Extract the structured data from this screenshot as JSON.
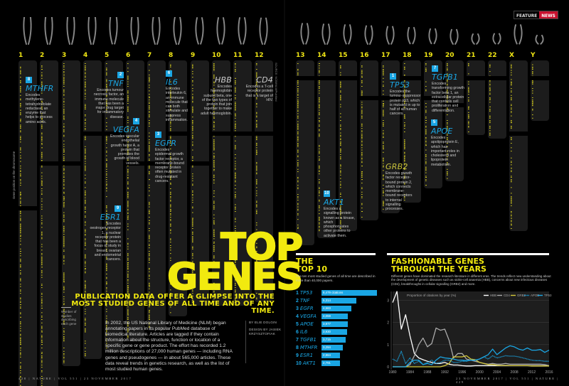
{
  "header": {
    "section_tag": "FEATURE",
    "section_tag_highlight": "NEWS",
    "colors": {
      "accent_yellow": "#f2ea0f",
      "accent_blue": "#1aa6e4",
      "news_red": "#c8102e"
    }
  },
  "chromosomes": [
    "1",
    "2",
    "3",
    "4",
    "5",
    "6",
    "7",
    "8",
    "9",
    "10",
    "11",
    "12",
    "13",
    "14",
    "15",
    "16",
    "17",
    "18",
    "19",
    "20",
    "21",
    "22",
    "X",
    "Y"
  ],
  "axis_notes": {
    "gene_position": "Gene position on the chromosome",
    "number_of_studies": "Number of studies describing each gene",
    "source": "SOURCE: NCBI/NLM/PubMed"
  },
  "genes": [
    {
      "rank": "8",
      "name": "MTHFR",
      "desc": "Encodes methylene-tetrahydrofolate reductase, an enzyme that helps to process amino acids."
    },
    {
      "rank": "2",
      "name": "TNF",
      "desc": "Encodes tumour necrosis factor, an immune molecule that has been a major drug target for inflammatory disease."
    },
    {
      "rank": "4",
      "name": "VEGFA",
      "desc": "Encodes vascular endothelial growth factor A, a protein that promotes the growth of blood vessels."
    },
    {
      "rank": "6",
      "name": "IL6",
      "desc": "Encodes interleukin 6, an immune molecule that can both stimulate and suppress inflammation."
    },
    {
      "rank": "3",
      "name": "EGFR",
      "desc": "Encodes epidermal growth factor receptor, a membrane-bound receptor protein often mutated in drug-resistant cancers."
    },
    {
      "rank": "",
      "name": "HBB",
      "desc": "Encodes haemoglobin subunit beta, one of the two types of protein that join together to make adult haemoglobin."
    },
    {
      "rank": "",
      "name": "CD4",
      "desc": "Encodes a T-cell receptor protein that is a target of HIV."
    },
    {
      "rank": "9",
      "name": "ESR1",
      "desc": "Encodes oestrogen receptor 1, a nuclear receptor protein that has been a focus of study in breast, ovarian and endometrial cancers."
    },
    {
      "rank": "1",
      "name": "TP53",
      "desc": "Encodes the tumour-suppressor protein p53, which is mutated in up to half of all human cancers."
    },
    {
      "rank": "7",
      "name": "TGFB1",
      "desc": "Encodes transforming growth factor beta 1, an extracellular protein that controls cell proliferation and differentiation."
    },
    {
      "rank": "5",
      "name": "APOE",
      "desc": "Encodes apolipoprotein E, which has important roles in cholesterol and lipoprotein metabolism."
    },
    {
      "rank": "",
      "name": "GRB2",
      "desc": "Encodes growth factor receptor-bound protein 2, which connects membrane-bound receptors to internal signalling processes."
    },
    {
      "rank": "10",
      "name": "AKT1",
      "desc": "Encodes a signalling protein known as a kinase, which phosphorylates other proteins to activate them."
    }
  ],
  "headline": {
    "line1": "TOP",
    "line2": "GENES",
    "subtitle": "PUBLICATION DATA OFFER A GLIMPSE INTO THE MOST STUDIED GENES OF ALL TIME AND OF ANY TIME."
  },
  "intro": "In 2002, the US National Library of Medicine (NLM) began annotating papers in its popular PubMed database of biomedical literature. Articles are tagged if they contain information about the structure, function or location of a specific gene or gene product. The effort has recorded 1.2 million descriptions of 27,000 human genes — including RNA genes and pseudogenes — in about 565,000 articles. These data reveal trends in genetics research, as well as the list of most studied human genes.",
  "byline": {
    "author": "BY ELIE DOLGIN",
    "design": "DESIGN BY JASIEK KRZYSZTOFIAK"
  },
  "folio": {
    "left": "428 | NATURE | VOL 551 | 23 NOVEMBER 2017",
    "right": "23 NOVEMBER 2017 | VOL 551 | NATURE | 429"
  },
  "top10": {
    "title_line1": "THE",
    "title_line2": "TOP 10",
    "desc": "The ten most studied genes of all time are described in more than 40,000 papers.",
    "unit_suffix": " citations",
    "items": [
      {
        "rank": "1",
        "gene": "TP53",
        "value": 8479,
        "label": "8,479"
      },
      {
        "rank": "2",
        "gene": "TNF",
        "value": 5314,
        "label": "5,314"
      },
      {
        "rank": "3",
        "gene": "EGFR",
        "value": 4583,
        "label": "4,583"
      },
      {
        "rank": "4",
        "gene": "VEGFA",
        "value": 4059,
        "label": "4,059"
      },
      {
        "rank": "5",
        "gene": "APOE",
        "value": 3977,
        "label": "3,977"
      },
      {
        "rank": "6",
        "gene": "IL6",
        "value": 3930,
        "label": "3,930"
      },
      {
        "rank": "7",
        "gene": "TGFB1",
        "value": 3715,
        "label": "3,715"
      },
      {
        "rank": "8",
        "gene": "MTHFR",
        "value": 3294,
        "label": "3,294"
      },
      {
        "rank": "9",
        "gene": "ESR1",
        "value": 2864,
        "label": "2,864"
      },
      {
        "rank": "10",
        "gene": "AKT1",
        "value": 2791,
        "label": "2,791"
      }
    ]
  },
  "fashion": {
    "title_line1": "FASHIONABLE GENES",
    "title_line2": "THROUGH THE YEARS",
    "desc": "Different genes have dominated the research literature in different eras. The trends reflect new understanding about the development of genetic diseases such as sickle-cell anaemia (HBB), concerns about new infectious diseases (CD4), breakthroughs in cellular signalling (GRB2) and more."
  },
  "chart_data": {
    "type": "line",
    "title": "Proportion of citations by year (%)",
    "xlabel": "",
    "ylabel": "Proportion of citations by year (%)",
    "x": [
      1980,
      1981,
      1982,
      1983,
      1984,
      1985,
      1986,
      1987,
      1988,
      1989,
      1990,
      1991,
      1992,
      1993,
      1994,
      1995,
      1996,
      1997,
      1998,
      1999,
      2000,
      2001,
      2002,
      2003,
      2004,
      2005,
      2006,
      2007,
      2008,
      2009,
      2010,
      2011,
      2012,
      2013,
      2014,
      2015,
      2016
    ],
    "xticks": [
      "1980",
      "1984",
      "1988",
      "1992",
      "1996",
      "2000",
      "2004",
      "2008",
      "2012",
      "2016"
    ],
    "yticks": [
      "0",
      "1",
      "2",
      "3"
    ],
    "ylim": [
      0,
      3.4
    ],
    "xlim": [
      1980,
      2016
    ],
    "grid": true,
    "legend_position": "top",
    "series": [
      {
        "name": "HBB",
        "color": "#ffffff",
        "dash": "solid",
        "values": [
          2.9,
          3.4,
          1.7,
          2.35,
          1.4,
          0.6,
          0.4,
          0.32,
          0.25,
          0.2,
          0.15,
          0.15,
          0.2,
          0.12,
          0.08,
          0.08,
          0.05,
          0.04,
          0.04,
          0.05,
          0.05,
          0.05,
          0.05,
          0.05,
          0.05,
          0.05,
          0.05,
          0.05,
          0.05,
          0.05,
          0.05,
          0.05,
          0.05,
          0.05,
          0.05,
          0.05,
          0.04
        ]
      },
      {
        "name": "CD4",
        "color": "#aaaaaa",
        "dash": "solid",
        "values": [
          0,
          0,
          0,
          0,
          0.1,
          0.5,
          1.0,
          1.3,
          0.9,
          1.05,
          1.75,
          1.65,
          1.7,
          1.2,
          0.4,
          0.6,
          0.6,
          0.35,
          0.3,
          0.25,
          0.2,
          0.15,
          0.12,
          0.15,
          0.12,
          0.12,
          0.15,
          0.12,
          0.12,
          0.12,
          0.12,
          0.12,
          0.12,
          0.12,
          0.12,
          0.1,
          0.05
        ]
      },
      {
        "name": "GRB2",
        "color": "#d4c83a",
        "dash": "solid",
        "values": [
          0,
          0,
          0,
          0,
          0,
          0,
          0,
          0,
          0,
          0,
          0,
          0,
          0.05,
          0.15,
          0.45,
          0.45,
          0.45,
          0.5,
          0.35,
          0.32,
          0.2,
          0.15,
          0.1,
          0.1,
          0.07,
          0.06,
          0.06,
          0.05,
          0.05,
          0.05,
          0.05,
          0.05,
          0.04,
          0.04,
          0.04,
          0.04,
          0.04
        ]
      },
      {
        "name": "APOE",
        "color": "#1aa6e4",
        "dash": "dotted",
        "values": [
          0.35,
          0.25,
          0.7,
          0.15,
          0.4,
          0.15,
          0.25,
          0.1,
          0.2,
          0.3,
          0.15,
          0.2,
          0.3,
          0.3,
          0.2,
          0.2,
          0.25,
          0.25,
          0.3,
          0.3,
          0.35,
          0.45,
          0.35,
          0.5,
          0.4,
          0.45,
          0.5,
          0.48,
          0.48,
          0.45,
          0.4,
          0.35,
          0.3,
          0.28,
          0.28,
          0.25,
          0.25
        ]
      },
      {
        "name": "TP53",
        "color": "#1aa6e4",
        "dash": "solid",
        "values": [
          0,
          0,
          0,
          0,
          0.2,
          0.3,
          0.3,
          0.1,
          0.15,
          0.1,
          0.3,
          0.45,
          0.4,
          0.38,
          0.35,
          0.3,
          0.3,
          0.28,
          0.3,
          0.3,
          0.35,
          0.45,
          0.55,
          0.8,
          0.55,
          0.7,
          0.85,
          0.95,
          0.9,
          0.8,
          0.75,
          0.85,
          0.75,
          0.75,
          0.78,
          0.65,
          0.75
        ]
      }
    ]
  }
}
